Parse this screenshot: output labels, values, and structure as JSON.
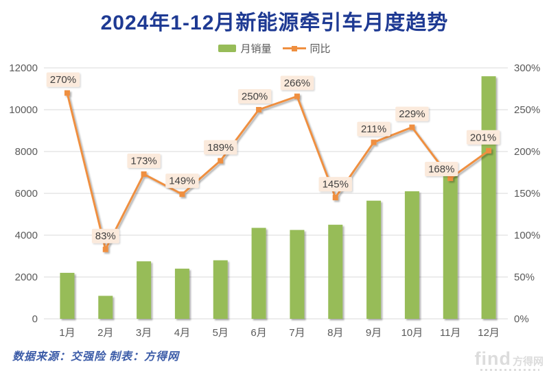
{
  "title": "2024年1-12月新能源牵引车月度趋势",
  "legend": {
    "bar_label": "月销量",
    "line_label": "同比"
  },
  "footer": {
    "source_text": "数据来源：交强险 制表：方得网",
    "watermark_brand": "find",
    "watermark_name": "方得网"
  },
  "colors": {
    "title": "#1E3A93",
    "bar": "#97BC58",
    "line": "#EF8F3F",
    "label_bg": "#FBEADC",
    "label_text": "#3F3F3F",
    "axis_text": "#595959",
    "gridline": "#D9D9D9",
    "source_text": "#3C5CA8",
    "watermark": "#DCDCDC"
  },
  "chart_data": {
    "type": "combo (bar + line, dual axis)",
    "title": "2024年1-12月新能源牵引车月度趋势",
    "categories": [
      "1月",
      "2月",
      "3月",
      "4月",
      "5月",
      "6月",
      "7月",
      "8月",
      "9月",
      "10月",
      "11月",
      "12月"
    ],
    "series": [
      {
        "name": "月销量",
        "type": "bar",
        "axis": "left",
        "values_estimated_from_gridlines": true,
        "values": [
          2200,
          1100,
          2750,
          2400,
          2800,
          4350,
          4250,
          4500,
          5650,
          6100,
          6900,
          11600
        ]
      },
      {
        "name": "同比",
        "type": "line",
        "axis": "right",
        "values": [
          270,
          83,
          173,
          149,
          189,
          250,
          266,
          145,
          211,
          229,
          168,
          201
        ],
        "labels": [
          "270%",
          "83%",
          "173%",
          "149%",
          "189%",
          "250%",
          "266%",
          "145%",
          "211%",
          "229%",
          "168%",
          "201%"
        ]
      }
    ],
    "left_axis": {
      "min": 0,
      "max": 12000,
      "step": 2000,
      "ticks": [
        "0",
        "2000",
        "4000",
        "6000",
        "8000",
        "10000",
        "12000"
      ]
    },
    "right_axis": {
      "min": 0,
      "max": 300,
      "step": 50,
      "ticks": [
        "0%",
        "50%",
        "100%",
        "150%",
        "200%",
        "250%",
        "300%"
      ]
    },
    "grid": "horizontal only",
    "legend_position": "top center"
  }
}
